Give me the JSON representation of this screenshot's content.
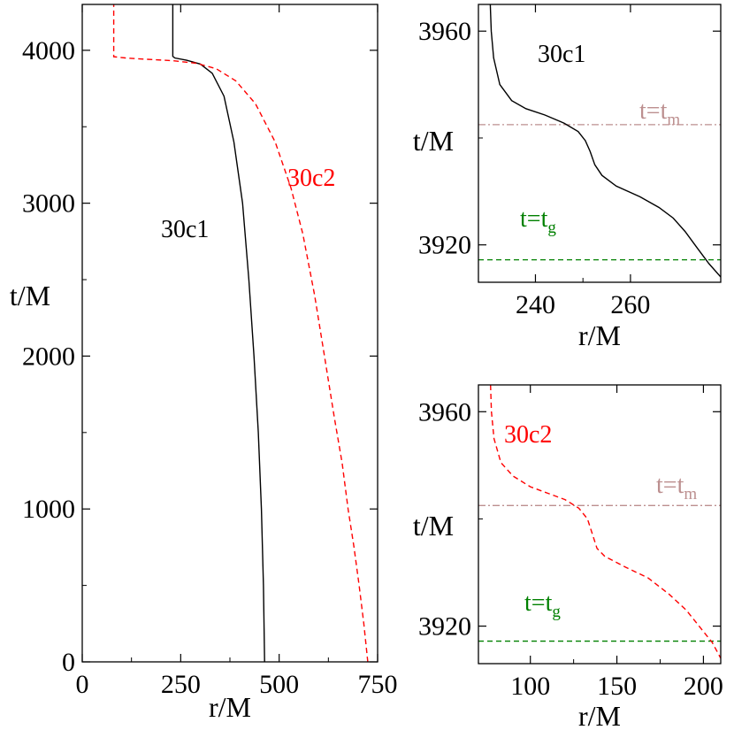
{
  "chart_data": [
    {
      "type": "line",
      "xlabel": "r/M",
      "ylabel": "t/M",
      "xlim": [
        0,
        750
      ],
      "ylim": [
        0,
        4300
      ],
      "xticks": [
        0,
        250,
        500,
        750
      ],
      "yticks": [
        0,
        1000,
        2000,
        3000,
        4000
      ],
      "grid": false,
      "series": [
        {
          "name": "30c1",
          "color": "#000000",
          "style": "solid",
          "points": [
            [
              463,
              0
            ],
            [
              460,
              500
            ],
            [
              455,
              1000
            ],
            [
              447,
              1500
            ],
            [
              436,
              2000
            ],
            [
              423,
              2500
            ],
            [
              407,
              3000
            ],
            [
              385,
              3400
            ],
            [
              360,
              3700
            ],
            [
              330,
              3850
            ],
            [
              300,
              3910
            ],
            [
              265,
              3935
            ],
            [
              235,
              3950
            ],
            [
              230,
              3960
            ],
            [
              230,
              4300
            ]
          ]
        },
        {
          "name": "30c2",
          "color": "#ff0000",
          "style": "dashed",
          "points": [
            [
              725,
              0
            ],
            [
              715,
              250
            ],
            [
              703,
              500
            ],
            [
              690,
              750
            ],
            [
              675,
              1000
            ],
            [
              660,
              1300
            ],
            [
              640,
              1600
            ],
            [
              615,
              2000
            ],
            [
              590,
              2400
            ],
            [
              560,
              2800
            ],
            [
              530,
              3100
            ],
            [
              490,
              3400
            ],
            [
              440,
              3650
            ],
            [
              390,
              3800
            ],
            [
              340,
              3880
            ],
            [
              290,
              3915
            ],
            [
              230,
              3932
            ],
            [
              160,
              3942
            ],
            [
              110,
              3950
            ],
            [
              80,
              3958
            ],
            [
              80,
              4300
            ]
          ]
        }
      ],
      "annotations": [
        {
          "text": "30c1",
          "color": "#000000"
        },
        {
          "text": "30c2",
          "color": "#ff0000"
        }
      ]
    },
    {
      "type": "line",
      "xlabel": "r/M",
      "ylabel": "t/M",
      "xlim": [
        228,
        279
      ],
      "ylim": [
        3913,
        3965
      ],
      "xticks": [
        240,
        260
      ],
      "yticks": [
        3920,
        3960
      ],
      "series": [
        {
          "name": "30c1",
          "color": "#000000",
          "style": "solid",
          "points": [
            [
              230.5,
              3965
            ],
            [
              230.7,
              3960
            ],
            [
              231.2,
              3955
            ],
            [
              232.5,
              3950
            ],
            [
              235,
              3947
            ],
            [
              238,
              3945.5
            ],
            [
              242,
              3944.3
            ],
            [
              246,
              3942.8
            ],
            [
              249,
              3941.2
            ],
            [
              250.5,
              3939.5
            ],
            [
              251.5,
              3937.5
            ],
            [
              252.5,
              3935
            ],
            [
              254,
              3933
            ],
            [
              257,
              3931
            ],
            [
              262,
              3929
            ],
            [
              266,
              3927
            ],
            [
              269,
              3925
            ],
            [
              271.5,
              3922.5
            ],
            [
              274,
              3919.5
            ],
            [
              276.5,
              3916.5
            ],
            [
              279,
              3914
            ]
          ]
        }
      ],
      "hlines": [
        {
          "y": 3942.5,
          "color": "#bc8f8f",
          "style": "dashdot",
          "label_main": "t=t",
          "label_sub": "m"
        },
        {
          "y": 3917.2,
          "color": "#008000",
          "style": "dashed",
          "label_main": "t=t",
          "label_sub": "g"
        }
      ],
      "annotations": [
        {
          "text": "30c1",
          "color": "#000000"
        }
      ]
    },
    {
      "type": "line",
      "xlabel": "r/M",
      "ylabel": "t/M",
      "xlim": [
        70,
        210
      ],
      "ylim": [
        3913,
        3965
      ],
      "xticks": [
        100,
        150,
        200
      ],
      "yticks": [
        3920,
        3960
      ],
      "series": [
        {
          "name": "30c2",
          "color": "#ff0000",
          "style": "dashed",
          "points": [
            [
              77,
              3965
            ],
            [
              77.5,
              3960
            ],
            [
              79,
              3955
            ],
            [
              83,
              3950.5
            ],
            [
              90,
              3948
            ],
            [
              100,
              3946
            ],
            [
              110,
              3944.8
            ],
            [
              120,
              3943.6
            ],
            [
              128,
              3942
            ],
            [
              133,
              3940
            ],
            [
              136,
              3937
            ],
            [
              138.5,
              3934.5
            ],
            [
              143,
              3933
            ],
            [
              155,
              3931
            ],
            [
              168,
              3929
            ],
            [
              180,
              3926
            ],
            [
              190,
              3923
            ],
            [
              200,
              3919
            ],
            [
              205,
              3917
            ],
            [
              210,
              3914
            ]
          ]
        }
      ],
      "hlines": [
        {
          "y": 3942.5,
          "color": "#bc8f8f",
          "style": "dashdot",
          "label_main": "t=t",
          "label_sub": "m"
        },
        {
          "y": 3917.2,
          "color": "#008000",
          "style": "dashed",
          "label_main": "t=t",
          "label_sub": "g"
        }
      ],
      "annotations": [
        {
          "text": "30c2",
          "color": "#ff0000"
        }
      ]
    }
  ]
}
